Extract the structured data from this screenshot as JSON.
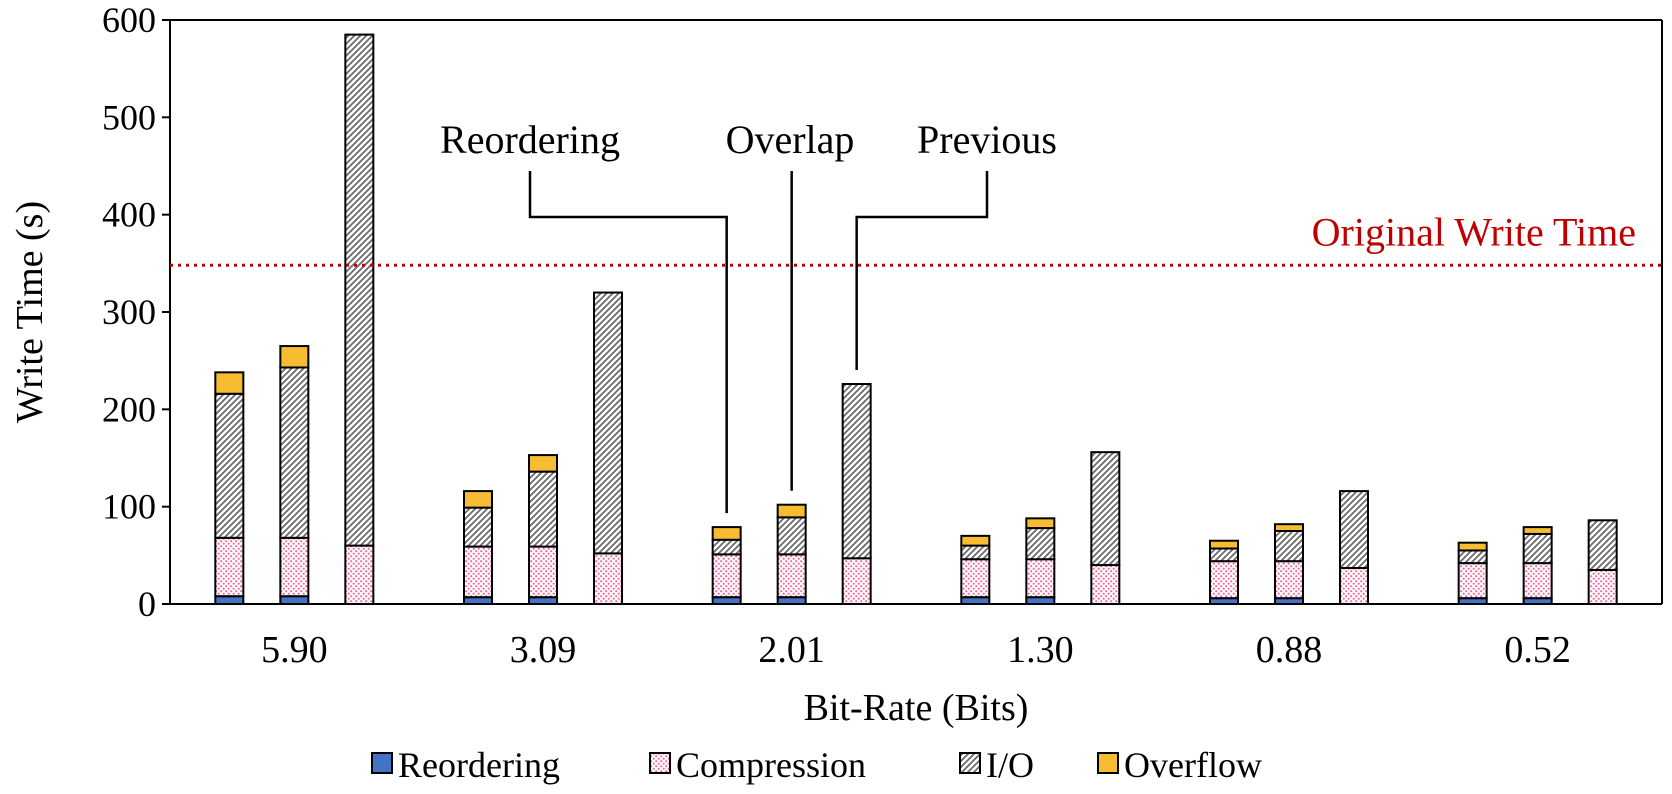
{
  "chart_data": {
    "type": "bar",
    "stacked": true,
    "title": "",
    "xlabel": "Bit-Rate (Bits)",
    "ylabel": "Write Time (s)",
    "ylim": [
      0,
      600
    ],
    "yticks": [
      0,
      100,
      200,
      300,
      400,
      500,
      600
    ],
    "categories": [
      "5.90",
      "3.09",
      "2.01",
      "1.30",
      "0.88",
      "0.52"
    ],
    "bars_per_category": [
      "Reordering",
      "Overlap",
      "Previous"
    ],
    "series": [
      {
        "name": "Reordering",
        "color": "#4472c4",
        "values": [
          [
            8,
            8,
            0
          ],
          [
            7,
            7,
            0
          ],
          [
            7,
            7,
            0
          ],
          [
            7,
            7,
            0
          ],
          [
            6,
            6,
            0
          ],
          [
            6,
            6,
            0
          ]
        ]
      },
      {
        "name": "Compression",
        "color": "#f4b8cc",
        "values": [
          [
            60,
            60,
            60
          ],
          [
            52,
            52,
            52
          ],
          [
            44,
            44,
            47
          ],
          [
            39,
            39,
            40
          ],
          [
            38,
            38,
            37
          ],
          [
            36,
            36,
            35
          ]
        ]
      },
      {
        "name": "I/O",
        "color": "#9e9e9e",
        "values": [
          [
            148,
            175,
            525
          ],
          [
            40,
            77,
            268
          ],
          [
            15,
            38,
            179
          ],
          [
            14,
            32,
            116
          ],
          [
            13,
            31,
            79
          ],
          [
            13,
            30,
            51
          ]
        ]
      },
      {
        "name": "Overflow",
        "color": "#f6bd32",
        "values": [
          [
            22,
            22,
            0
          ],
          [
            17,
            17,
            0
          ],
          [
            13,
            13,
            0
          ],
          [
            10,
            10,
            0
          ],
          [
            8,
            7,
            0
          ],
          [
            8,
            7,
            0
          ]
        ]
      }
    ],
    "reference_line": {
      "label": "Original Write Time",
      "value": 348,
      "color": "#c00000"
    },
    "annotations": [
      {
        "label": "Reordering",
        "category": "2.01",
        "bar": "Reordering"
      },
      {
        "label": "Overlap",
        "category": "2.01",
        "bar": "Overlap"
      },
      {
        "label": "Previous",
        "category": "2.01",
        "bar": "Previous"
      }
    ],
    "legend": {
      "position": "bottom",
      "entries": [
        "Reordering",
        "Compression",
        "I/O",
        "Overflow"
      ]
    }
  }
}
